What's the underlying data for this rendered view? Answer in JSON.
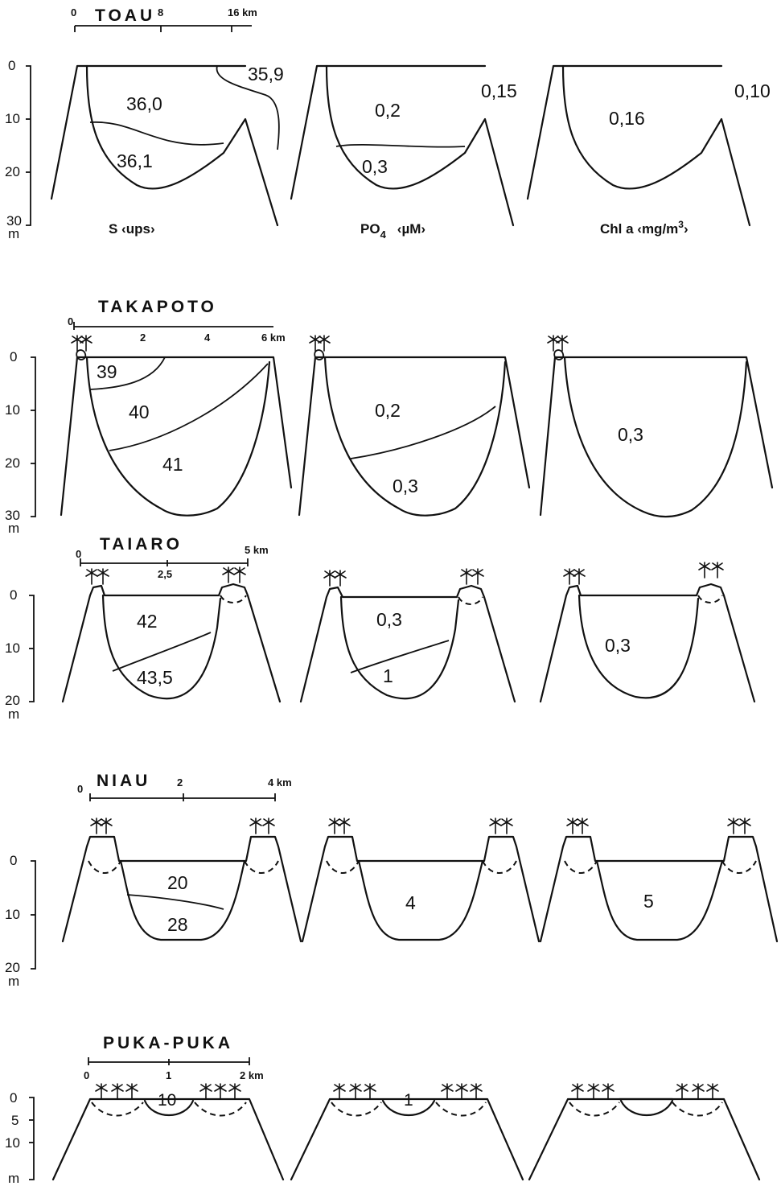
{
  "parameters": {
    "salinity": "S  ‹ups›",
    "phosphate_main": "PO",
    "phosphate_sub": "4",
    "phosphate_unit": "‹µM›",
    "chlorophyll_main": "Chl a ‹mg/m",
    "chlorophyll_sup": "3",
    "chlorophyll_end": "›"
  },
  "atolls": [
    {
      "name": "TOAU",
      "scale_ticks": [
        "0",
        "8",
        "16 km"
      ],
      "depth_ticks": [
        "0",
        "10",
        "20",
        "30",
        "m"
      ],
      "salinity": [
        "36,0",
        "36,1",
        "35,9"
      ],
      "phosphate": [
        "0,2",
        "0,3",
        "0,15"
      ],
      "chlorophyll": [
        "0,16",
        "0,10"
      ]
    },
    {
      "name": "TAKAPOTO",
      "scale_ticks": [
        "0",
        "2",
        "4",
        "6 km"
      ],
      "depth_ticks": [
        "0",
        "10",
        "20",
        "30",
        "m"
      ],
      "salinity": [
        "39",
        "40",
        "41"
      ],
      "phosphate": [
        "0,2",
        "0,3"
      ],
      "chlorophyll": [
        "0,3"
      ]
    },
    {
      "name": "TAIARO",
      "scale_ticks": [
        "0",
        "2,5",
        "5 km"
      ],
      "depth_ticks": [
        "0",
        "10",
        "20",
        "m"
      ],
      "salinity": [
        "42",
        "43,5"
      ],
      "phosphate": [
        "0,3",
        "1"
      ],
      "chlorophyll": [
        "0,3"
      ]
    },
    {
      "name": "NIAU",
      "scale_ticks": [
        "0",
        "2",
        "4 km"
      ],
      "depth_ticks": [
        "0",
        "10",
        "20",
        "m"
      ],
      "salinity": [
        "20",
        "28"
      ],
      "phosphate": [
        "4"
      ],
      "chlorophyll": [
        "5"
      ]
    },
    {
      "name": "PUKA-PUKA",
      "scale_ticks": [
        "0",
        "1",
        "2 km"
      ],
      "depth_ticks": [
        "0",
        "5",
        "10",
        "m"
      ],
      "salinity": [
        "10"
      ],
      "phosphate": [
        "1"
      ],
      "chlorophyll": []
    }
  ]
}
